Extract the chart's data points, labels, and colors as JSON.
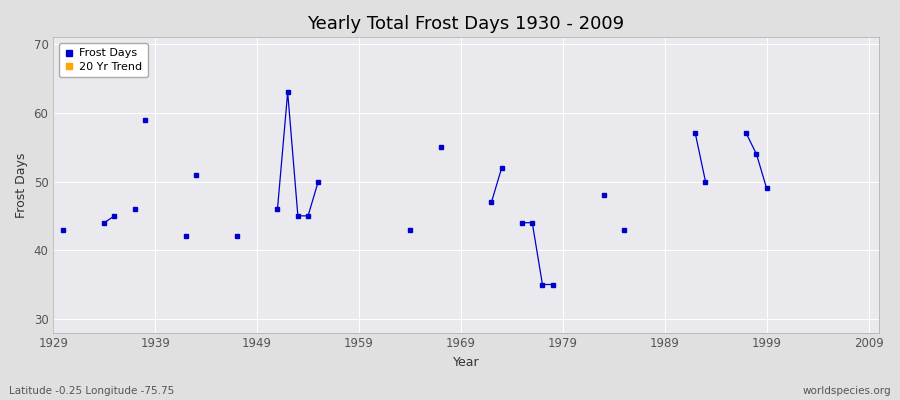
{
  "title": "Yearly Total Frost Days 1930 - 2009",
  "xlabel": "Year",
  "ylabel": "Frost Days",
  "xlim": [
    1929,
    2010
  ],
  "ylim": [
    28,
    71
  ],
  "yticks": [
    30,
    40,
    50,
    60,
    70
  ],
  "xticks": [
    1929,
    1939,
    1949,
    1959,
    1969,
    1979,
    1989,
    1999,
    2009
  ],
  "bg_color": "#e0e0e0",
  "plot_bg_color": "#eaeaee",
  "grid_color": "#ffffff",
  "line_color": "#0000cc",
  "marker_color": "#0000cc",
  "legend_frost_color": "#0000cc",
  "legend_trend_color": "#ffa500",
  "subtitle": "Latitude -0.25 Longitude -75.75",
  "watermark": "worldspecies.org",
  "segments": [
    [
      [
        1930
      ],
      [
        43
      ]
    ],
    [
      [
        1934,
        1935
      ],
      [
        44,
        45
      ]
    ],
    [
      [
        1937
      ],
      [
        46
      ]
    ],
    [
      [
        1938
      ],
      [
        59
      ]
    ],
    [
      [
        1942
      ],
      [
        42
      ]
    ],
    [
      [
        1943
      ],
      [
        51
      ]
    ],
    [
      [
        1947
      ],
      [
        42
      ]
    ],
    [
      [
        1951,
        1952,
        1953,
        1954,
        1955
      ],
      [
        46,
        63,
        45,
        45,
        50
      ]
    ],
    [
      [
        1964
      ],
      [
        43
      ]
    ],
    [
      [
        1967
      ],
      [
        55
      ]
    ],
    [
      [
        1972,
        1973
      ],
      [
        47,
        52
      ]
    ],
    [
      [
        1975,
        1976,
        1977,
        1978
      ],
      [
        44,
        44,
        35,
        35
      ]
    ],
    [
      [
        1983
      ],
      [
        48
      ]
    ],
    [
      [
        1985
      ],
      [
        43
      ]
    ],
    [
      [
        1992,
        1993
      ],
      [
        57,
        50
      ]
    ],
    [
      [
        1997,
        1998,
        1999
      ],
      [
        57,
        54,
        49
      ]
    ]
  ]
}
